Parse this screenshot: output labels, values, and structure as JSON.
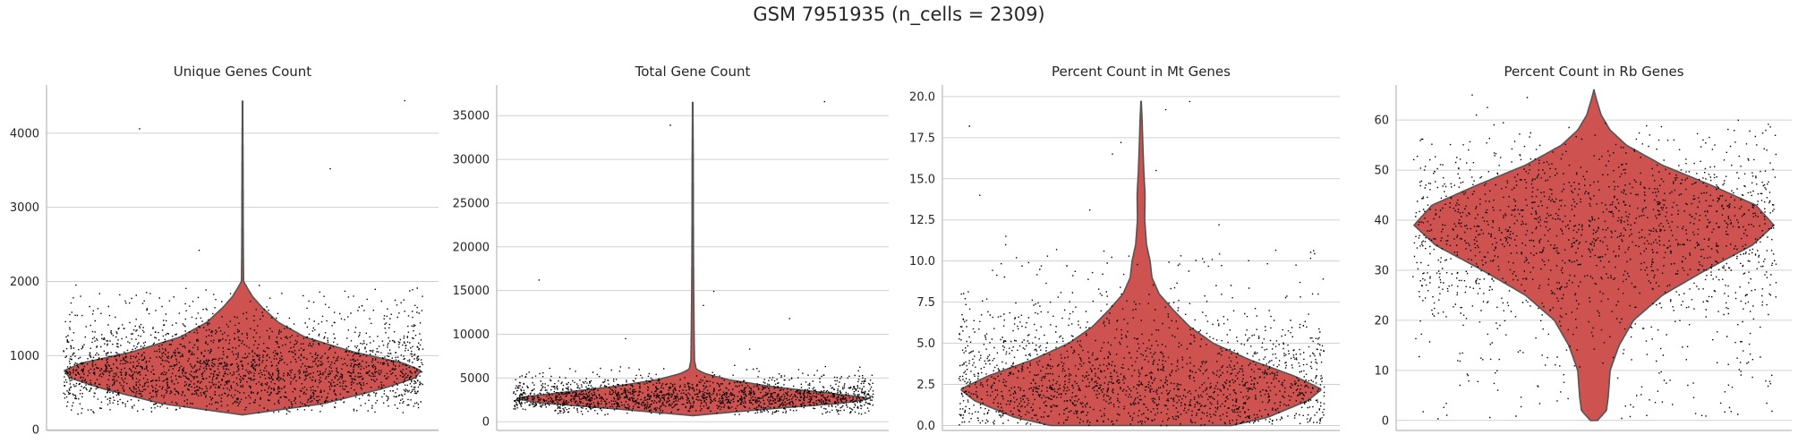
{
  "figure_title": "GSM 7951935 (n_cells = 2309)",
  "colors": {
    "violin_fill": "#cd5250",
    "violin_edge": "#555555",
    "points": "#000000",
    "grid": "#d0d0d0",
    "axis": "#b8b8b8"
  },
  "chart_data": [
    {
      "type": "violin",
      "title": "Unique Genes Count",
      "xlabel": "",
      "ylabel": "",
      "ylim": [
        -10,
        4650
      ],
      "yticks": [
        0,
        1000,
        2000,
        3000,
        4000
      ],
      "grid": true,
      "density_profile": [
        [
          200,
          0.0
        ],
        [
          350,
          0.45
        ],
        [
          550,
          0.78
        ],
        [
          700,
          0.97
        ],
        [
          800,
          1.0
        ],
        [
          900,
          0.9
        ],
        [
          1050,
          0.62
        ],
        [
          1250,
          0.35
        ],
        [
          1450,
          0.2
        ],
        [
          1650,
          0.11
        ],
        [
          1800,
          0.055
        ],
        [
          1900,
          0.03
        ],
        [
          2000,
          0.006
        ],
        [
          2500,
          0.004
        ],
        [
          3500,
          0.003
        ],
        [
          4430,
          0.001
        ]
      ],
      "bulk_range": [
        150,
        1950
      ],
      "outliers": [
        3520,
        4060,
        2420,
        4440,
        1950
      ]
    },
    {
      "type": "violin",
      "title": "Total Gene Count",
      "xlabel": "",
      "ylabel": "",
      "ylim": [
        -1000,
        38500
      ],
      "yticks": [
        0,
        5000,
        10000,
        15000,
        20000,
        25000,
        30000,
        35000
      ],
      "grid": true,
      "density_profile": [
        [
          700,
          0.0
        ],
        [
          1500,
          0.45
        ],
        [
          2200,
          0.88
        ],
        [
          2700,
          1.0
        ],
        [
          3300,
          0.75
        ],
        [
          4000,
          0.45
        ],
        [
          4800,
          0.2
        ],
        [
          5500,
          0.07
        ],
        [
          6000,
          0.02
        ],
        [
          7000,
          0.01
        ],
        [
          10000,
          0.008
        ],
        [
          14000,
          0.006
        ],
        [
          20000,
          0.004
        ],
        [
          30000,
          0.003
        ],
        [
          36500,
          0.001
        ]
      ],
      "bulk_range": [
        300,
        6500
      ],
      "outliers": [
        16200,
        14900,
        36600,
        33900,
        11800,
        13300,
        9500,
        8300
      ]
    },
    {
      "type": "violin",
      "title": "Percent Count in Mt Genes",
      "xlabel": "",
      "ylabel": "",
      "ylim": [
        -0.3,
        20.7
      ],
      "yticks": [
        0.0,
        2.5,
        5.0,
        7.5,
        10.0,
        12.5,
        15.0,
        17.5,
        20.0
      ],
      "grid": true,
      "density_profile": [
        [
          0.0,
          0.5
        ],
        [
          0.5,
          0.7
        ],
        [
          1.5,
          0.92
        ],
        [
          2.2,
          1.0
        ],
        [
          3.0,
          0.85
        ],
        [
          4.0,
          0.6
        ],
        [
          5.0,
          0.4
        ],
        [
          6.0,
          0.27
        ],
        [
          7.0,
          0.18
        ],
        [
          8.0,
          0.1
        ],
        [
          9.0,
          0.06
        ],
        [
          10.0,
          0.05
        ],
        [
          11.0,
          0.03
        ],
        [
          12.5,
          0.02
        ],
        [
          14.0,
          0.022
        ],
        [
          15.5,
          0.015
        ],
        [
          17.0,
          0.01
        ],
        [
          18.5,
          0.006
        ],
        [
          19.7,
          0.001
        ]
      ],
      "bulk_range": [
        0.0,
        11.0
      ],
      "outliers": [
        19.2,
        19.7,
        18.2,
        17.2,
        16.5,
        15.5,
        14.0,
        13.1,
        12.2,
        11.5
      ]
    },
    {
      "type": "violin",
      "title": "Percent Count in Rb Genes",
      "xlabel": "",
      "ylabel": "",
      "ylim": [
        -2,
        67
      ],
      "yticks": [
        0,
        10,
        20,
        30,
        40,
        50,
        60
      ],
      "grid": true,
      "density_profile": [
        [
          0,
          0.02
        ],
        [
          2,
          0.07
        ],
        [
          5,
          0.08
        ],
        [
          10,
          0.09
        ],
        [
          15,
          0.14
        ],
        [
          20,
          0.22
        ],
        [
          25,
          0.38
        ],
        [
          30,
          0.62
        ],
        [
          35,
          0.88
        ],
        [
          39,
          1.0
        ],
        [
          43,
          0.9
        ],
        [
          47,
          0.65
        ],
        [
          51,
          0.38
        ],
        [
          55,
          0.18
        ],
        [
          58,
          0.09
        ],
        [
          61,
          0.04
        ],
        [
          64,
          0.015
        ],
        [
          66,
          0.0
        ]
      ],
      "bulk_range": [
        0,
        60
      ],
      "outliers": [
        65.0,
        64.5,
        62.5,
        61.0
      ]
    }
  ]
}
